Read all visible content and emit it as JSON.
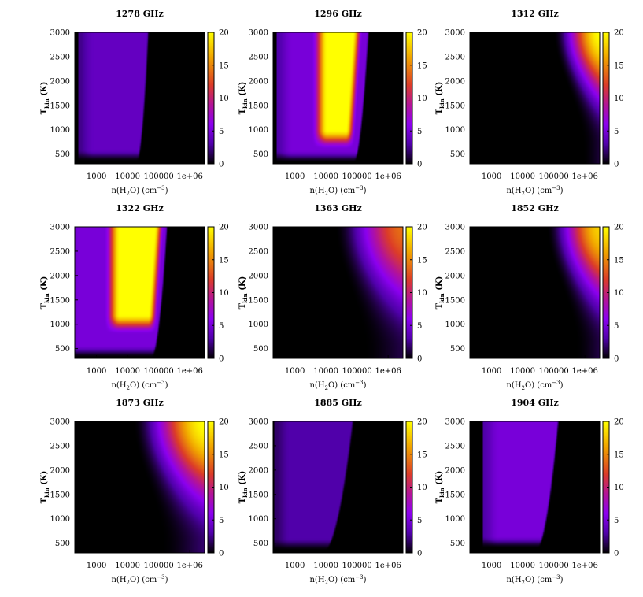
{
  "figure": {
    "columns": 3,
    "colorbar": {
      "ticks": [
        0,
        5,
        10,
        15,
        20
      ],
      "range": [
        0,
        20
      ],
      "palette": "black-purple-red-yellow"
    }
  },
  "chart_data": [
    {
      "type": "heatmap",
      "title": "1278 GHz",
      "xlabel": "n(H2O) (cm-3)",
      "ylabel": "Tkin (K)",
      "x_scale": "log",
      "xlim": [
        200,
        3000000
      ],
      "ylim": [
        300,
        3000
      ],
      "x_ticks": [
        "1000",
        "10000",
        "100000",
        "1e+06"
      ],
      "y_ticks": [
        500,
        1000,
        1500,
        2000,
        2500,
        3000
      ],
      "clim": [
        0,
        20
      ],
      "region": {
        "intensity_max": 4,
        "density_low": 600,
        "density_high": 50000,
        "density_high_at_low_temp": 20000,
        "temp_floor": 350
      }
    },
    {
      "type": "heatmap",
      "title": "1296 GHz",
      "xlabel": "n(H2O) (cm-3)",
      "ylabel": "Tkin (K)",
      "x_scale": "log",
      "xlim": [
        200,
        3000000
      ],
      "ylim": [
        300,
        3000
      ],
      "x_ticks": [
        "1000",
        "10000",
        "100000",
        "1e+06"
      ],
      "y_ticks": [
        500,
        1000,
        1500,
        2000,
        2500,
        3000
      ],
      "clim": [
        0,
        20
      ],
      "region": {
        "intensity_max": 20,
        "density_low": 600,
        "density_high": 250000,
        "density_high_at_low_temp": 80000,
        "temp_floor": 330,
        "core_low": 3500,
        "core_high": 150000,
        "core_temp_floor": 600
      }
    },
    {
      "type": "heatmap",
      "title": "1312 GHz",
      "xlabel": "n(H2O) (cm-3)",
      "ylabel": "Tkin (K)",
      "x_scale": "log",
      "xlim": [
        200,
        3000000
      ],
      "ylim": [
        300,
        3000
      ],
      "x_ticks": [
        "1000",
        "10000",
        "100000",
        "1e+06"
      ],
      "y_ticks": [
        500,
        1000,
        1500,
        2000,
        2500,
        3000
      ],
      "clim": [
        0,
        20
      ],
      "region": {
        "intensity_max": 20,
        "density_rise_start": 100000,
        "temp_floor": 700,
        "peak_temp": 3000
      }
    },
    {
      "type": "heatmap",
      "title": "1322 GHz",
      "xlabel": "n(H2O) (cm-3)",
      "ylabel": "Tkin (K)",
      "x_scale": "log",
      "xlim": [
        200,
        3000000
      ],
      "ylim": [
        300,
        3000
      ],
      "x_ticks": [
        "1000",
        "10000",
        "100000",
        "1e+06"
      ],
      "y_ticks": [
        500,
        1000,
        1500,
        2000,
        2500,
        3000
      ],
      "clim": [
        0,
        20
      ],
      "region": {
        "intensity_max": 20,
        "density_low": 200,
        "density_high": 200000,
        "density_high_at_low_temp": 60000,
        "temp_floor": 320,
        "core_low": 1800,
        "core_high": 150000,
        "core_temp_floor": 800
      }
    },
    {
      "type": "heatmap",
      "title": "1363 GHz",
      "xlabel": "n(H2O) (cm-3)",
      "ylabel": "Tkin (K)",
      "x_scale": "log",
      "xlim": [
        200,
        3000000
      ],
      "ylim": [
        300,
        3000
      ],
      "x_ticks": [
        "1000",
        "10000",
        "100000",
        "1e+06"
      ],
      "y_ticks": [
        500,
        1000,
        1500,
        2000,
        2500,
        3000
      ],
      "clim": [
        0,
        20
      ],
      "region": {
        "intensity_max": 14,
        "density_rise_start": 20000,
        "temp_floor": 500,
        "peak_temp": 3000
      }
    },
    {
      "type": "heatmap",
      "title": "1852 GHz",
      "xlabel": "n(H2O) (cm-3)",
      "ylabel": "Tkin (K)",
      "x_scale": "log",
      "xlim": [
        200,
        3000000
      ],
      "ylim": [
        300,
        3000
      ],
      "x_ticks": [
        "1000",
        "10000",
        "100000",
        "1e+06"
      ],
      "y_ticks": [
        500,
        1000,
        1500,
        2000,
        2500,
        3000
      ],
      "clim": [
        0,
        20
      ],
      "region": {
        "intensity_max": 18,
        "density_rise_start": 60000,
        "temp_floor": 600,
        "peak_temp": 3000
      }
    },
    {
      "type": "heatmap",
      "title": "1873 GHz",
      "xlabel": "n(H2O) (cm-3)",
      "ylabel": "Tkin (K)",
      "x_scale": "log",
      "xlim": [
        200,
        3000000
      ],
      "ylim": [
        300,
        3000
      ],
      "x_ticks": [
        "1000",
        "10000",
        "100000",
        "1e+06"
      ],
      "y_ticks": [
        500,
        1000,
        1500,
        2000,
        2500,
        3000
      ],
      "clim": [
        0,
        20
      ],
      "region": {
        "intensity_max": 20,
        "density_rise_start": 15000,
        "temp_floor": 500,
        "peak_temp": 3000
      }
    },
    {
      "type": "heatmap",
      "title": "1885 GHz",
      "xlabel": "n(H2O) (cm-3)",
      "ylabel": "Tkin (K)",
      "x_scale": "log",
      "xlim": [
        200,
        3000000
      ],
      "ylim": [
        300,
        3000
      ],
      "x_ticks": [
        "1000",
        "10000",
        "100000",
        "1e+06"
      ],
      "y_ticks": [
        500,
        1000,
        1500,
        2000,
        2500,
        3000
      ],
      "clim": [
        0,
        20
      ],
      "region": {
        "intensity_max": 3,
        "density_low": 500,
        "density_high": 80000,
        "density_high_at_low_temp": 8000,
        "temp_floor": 350
      }
    },
    {
      "type": "heatmap",
      "title": "1904 GHz",
      "xlabel": "n(H2O) (cm-3)",
      "ylabel": "Tkin (K)",
      "x_scale": "log",
      "xlim": [
        200,
        3000000
      ],
      "ylim": [
        300,
        3000
      ],
      "x_ticks": [
        "1000",
        "10000",
        "100000",
        "1e+06"
      ],
      "y_ticks": [
        500,
        1000,
        1500,
        2000,
        2500,
        3000
      ],
      "clim": [
        0,
        20
      ],
      "region": {
        "intensity_max": 5,
        "density_low": 1200,
        "density_high": 150000,
        "density_high_at_low_temp": 25000,
        "temp_floor": 400
      }
    }
  ]
}
